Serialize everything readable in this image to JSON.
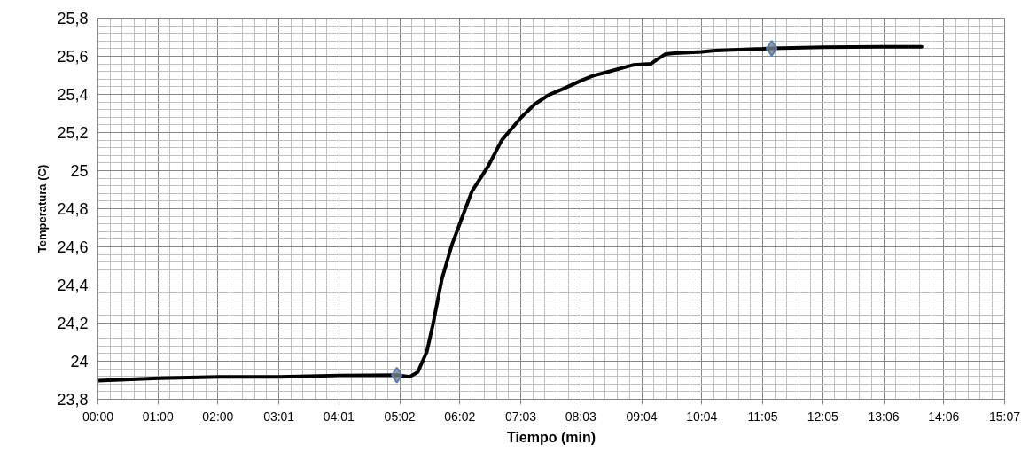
{
  "chart_data": {
    "type": "line",
    "xlabel": "Tiempo (min)",
    "ylabel": "Temperatura (C)",
    "xlim": [
      0,
      907
    ],
    "ylim": [
      23.8,
      25.8
    ],
    "xticks": [
      {
        "value": 0,
        "label": "00:00"
      },
      {
        "value": 60,
        "label": "01:00"
      },
      {
        "value": 120,
        "label": "02:00"
      },
      {
        "value": 181,
        "label": "03:01"
      },
      {
        "value": 241,
        "label": "04:01"
      },
      {
        "value": 302,
        "label": "05:02"
      },
      {
        "value": 362,
        "label": "06:02"
      },
      {
        "value": 423,
        "label": "07:03"
      },
      {
        "value": 483,
        "label": "08:03"
      },
      {
        "value": 544,
        "label": "09:04"
      },
      {
        "value": 604,
        "label": "10:04"
      },
      {
        "value": 665,
        "label": "11:05"
      },
      {
        "value": 725,
        "label": "12:05"
      },
      {
        "value": 786,
        "label": "13:06"
      },
      {
        "value": 846,
        "label": "14:06"
      },
      {
        "value": 907,
        "label": "15:07"
      }
    ],
    "yticks": [
      {
        "value": 23.8,
        "label": "23,8"
      },
      24,
      {
        "value": 24.2,
        "label": "24,2"
      },
      {
        "value": 24.4,
        "label": "24,4"
      },
      {
        "value": 24.6,
        "label": "24,6"
      },
      {
        "value": 24.8,
        "label": "24,8"
      },
      25,
      {
        "value": 25.2,
        "label": "25,2"
      },
      {
        "value": 25.4,
        "label": "25,4"
      },
      {
        "value": 25.6,
        "label": "25,6"
      },
      {
        "value": 25.8,
        "label": "25,8"
      }
    ],
    "grid": true,
    "series": [
      {
        "color": "#000000",
        "marker": "none",
        "x": [
          0,
          61,
          121,
          181,
          242,
          299,
          312,
          320,
          329,
          335,
          344,
          354,
          364,
          374,
          390,
          404,
          423,
          437,
          451,
          464,
          484,
          495,
          508,
          536,
          553,
          559,
          568,
          577,
          604,
          617,
          665,
          674,
          726,
          784,
          824
        ],
        "values": [
          23.898,
          23.911,
          23.918,
          23.918,
          23.925,
          23.927,
          23.918,
          23.943,
          24.05,
          24.19,
          24.43,
          24.61,
          24.75,
          24.89,
          25.02,
          25.16,
          25.277,
          25.349,
          25.397,
          25.426,
          25.474,
          25.497,
          25.515,
          25.555,
          25.56,
          25.582,
          25.612,
          25.616,
          25.623,
          25.63,
          25.639,
          25.642,
          25.648,
          25.65,
          25.65
        ]
      },
      {
        "type": "scatter",
        "color": "#4f81bd",
        "marker": "diamond",
        "x": [
          299,
          674
        ],
        "values": [
          23.927,
          25.642
        ]
      }
    ]
  }
}
